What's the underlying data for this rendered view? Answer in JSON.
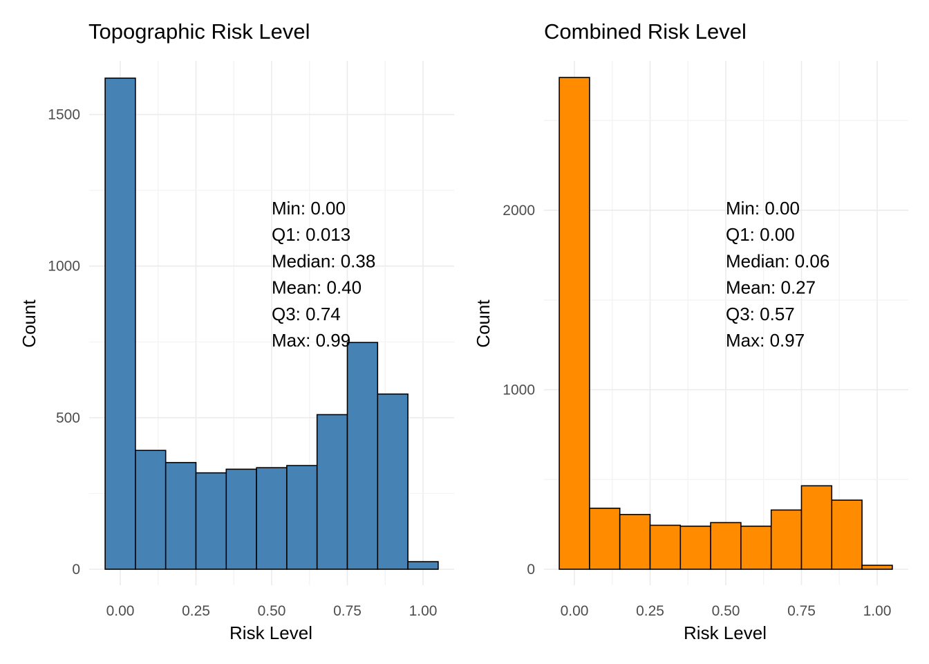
{
  "chart_data": [
    {
      "type": "bar",
      "title": "Topographic Risk Level",
      "xlabel": "Risk Level",
      "ylabel": "Count",
      "fill": "#4682B4",
      "outline": "#000000",
      "bin_width": 0.1,
      "bin_centers": [
        0.0,
        0.1,
        0.2,
        0.3,
        0.4,
        0.5,
        0.6,
        0.7,
        0.8,
        0.9,
        1.0
      ],
      "values": [
        1620,
        392,
        352,
        318,
        330,
        335,
        342,
        510,
        748,
        578,
        25
      ],
      "xlim": [
        -0.05,
        1.05
      ],
      "ylim": [
        0,
        1620
      ],
      "x_ticks": [
        0,
        0.25,
        0.5,
        0.75,
        1.0
      ],
      "x_tick_labels": [
        "0.00",
        "0.25",
        "0.50",
        "0.75",
        "1.00"
      ],
      "y_ticks": [
        0,
        500,
        1000,
        1500
      ],
      "y_tick_labels": [
        "0",
        "500",
        "1000",
        "1500"
      ],
      "grid": true,
      "annotation": [
        "Min: 0.00",
        "Q1: 0.013",
        "Median: 0.38",
        "Mean: 0.40",
        "Q3: 0.74",
        "Max: 0.99"
      ]
    },
    {
      "type": "bar",
      "title": "Combined Risk Level",
      "xlabel": "Risk Level",
      "ylabel": "Count",
      "fill": "#FF8C00",
      "outline": "#000000",
      "bin_width": 0.1,
      "bin_centers": [
        0.0,
        0.1,
        0.2,
        0.3,
        0.4,
        0.5,
        0.6,
        0.7,
        0.8,
        0.9,
        1.0
      ],
      "values": [
        2740,
        340,
        305,
        245,
        240,
        260,
        240,
        330,
        465,
        385,
        22
      ],
      "xlim": [
        -0.05,
        1.05
      ],
      "ylim": [
        0,
        2740
      ],
      "x_ticks": [
        0,
        0.25,
        0.5,
        0.75,
        1.0
      ],
      "x_tick_labels": [
        "0.00",
        "0.25",
        "0.50",
        "0.75",
        "1.00"
      ],
      "y_ticks": [
        0,
        1000,
        2000
      ],
      "y_tick_labels": [
        "0",
        "1000",
        "2000"
      ],
      "grid": true,
      "annotation": [
        "Min: 0.00",
        "Q1: 0.00",
        "Median: 0.06",
        "Mean: 0.27",
        "Q3: 0.57",
        "Max: 0.97"
      ]
    }
  ]
}
